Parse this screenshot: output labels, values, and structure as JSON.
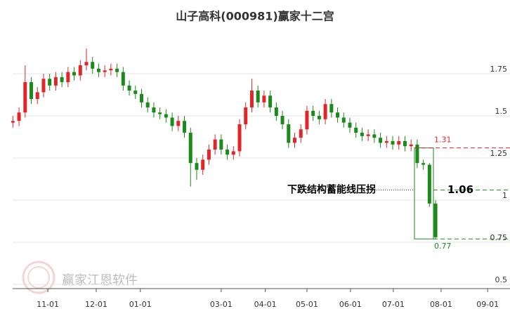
{
  "chart_data": {
    "type": "candlestick",
    "title": "山子高科(000981)赢家十二宫",
    "watermark": "赢家江恩软件",
    "categories": [
      null,
      null,
      null,
      null,
      null,
      null,
      null,
      null,
      null,
      null,
      null,
      null,
      null,
      null,
      null,
      null,
      null,
      null,
      null,
      null,
      null,
      null,
      null,
      null,
      null,
      null,
      null,
      null,
      null,
      null,
      null,
      null,
      null,
      null,
      null,
      null,
      null,
      null,
      null,
      null,
      null,
      null,
      null,
      null,
      null,
      null,
      null,
      null,
      null,
      null,
      null,
      null,
      null,
      null,
      null,
      null,
      null,
      null,
      null,
      null,
      null,
      null,
      null,
      null,
      null,
      null,
      null,
      null,
      null,
      null
    ],
    "open": [
      1.46,
      1.47,
      1.52,
      1.7,
      1.6,
      1.64,
      1.72,
      1.68,
      1.73,
      1.7,
      1.76,
      1.74,
      1.8,
      1.82,
      1.78,
      1.76,
      1.77,
      1.78,
      1.76,
      1.68,
      1.65,
      1.63,
      1.58,
      1.55,
      1.52,
      1.51,
      1.49,
      1.44,
      1.47,
      1.4,
      1.22,
      1.18,
      1.24,
      1.3,
      1.36,
      1.3,
      1.27,
      1.29,
      1.45,
      1.55,
      1.65,
      1.58,
      1.62,
      1.55,
      1.5,
      1.45,
      1.34,
      1.37,
      1.42,
      1.53,
      1.5,
      1.48,
      1.57,
      1.52,
      1.49,
      1.46,
      1.43,
      1.4,
      1.38,
      1.39,
      1.37,
      1.34,
      1.35,
      1.33,
      1.35,
      1.32,
      1.33,
      1.22,
      1.21,
      0.98
    ],
    "high": [
      1.5,
      1.55,
      1.8,
      1.73,
      1.67,
      1.75,
      1.75,
      1.76,
      1.76,
      1.79,
      1.79,
      1.83,
      1.9,
      1.85,
      1.81,
      1.8,
      1.81,
      1.81,
      1.79,
      1.71,
      1.68,
      1.66,
      1.61,
      1.58,
      1.55,
      1.54,
      1.52,
      1.5,
      1.5,
      1.43,
      1.25,
      1.27,
      1.33,
      1.39,
      1.39,
      1.33,
      1.32,
      1.48,
      1.58,
      1.72,
      1.68,
      1.65,
      1.65,
      1.58,
      1.53,
      1.48,
      1.4,
      1.45,
      1.56,
      1.56,
      1.53,
      1.6,
      1.6,
      1.55,
      1.52,
      1.49,
      1.46,
      1.43,
      1.42,
      1.42,
      1.4,
      1.38,
      1.38,
      1.38,
      1.38,
      1.36,
      1.36,
      1.24,
      1.22,
      1.0
    ],
    "low": [
      1.43,
      1.44,
      1.49,
      1.57,
      1.57,
      1.61,
      1.65,
      1.65,
      1.67,
      1.67,
      1.71,
      1.71,
      1.77,
      1.75,
      1.73,
      1.73,
      1.74,
      1.73,
      1.65,
      1.62,
      1.6,
      1.55,
      1.52,
      1.49,
      1.48,
      1.46,
      1.41,
      1.41,
      1.37,
      1.08,
      1.12,
      1.15,
      1.21,
      1.27,
      1.27,
      1.24,
      1.24,
      1.26,
      1.42,
      1.52,
      1.55,
      1.55,
      1.52,
      1.47,
      1.42,
      1.31,
      1.31,
      1.34,
      1.39,
      1.47,
      1.45,
      1.45,
      1.49,
      1.46,
      1.43,
      1.4,
      1.37,
      1.35,
      1.35,
      1.34,
      1.31,
      1.31,
      1.3,
      1.3,
      1.29,
      1.29,
      1.19,
      1.18,
      0.96,
      0.77
    ],
    "close": [
      1.47,
      1.52,
      1.7,
      1.6,
      1.64,
      1.72,
      1.68,
      1.73,
      1.7,
      1.76,
      1.74,
      1.8,
      1.82,
      1.78,
      1.76,
      1.77,
      1.78,
      1.76,
      1.68,
      1.65,
      1.63,
      1.58,
      1.55,
      1.52,
      1.51,
      1.49,
      1.44,
      1.47,
      1.4,
      1.22,
      1.18,
      1.24,
      1.3,
      1.36,
      1.3,
      1.27,
      1.29,
      1.45,
      1.55,
      1.65,
      1.58,
      1.62,
      1.55,
      1.5,
      1.45,
      1.34,
      1.37,
      1.42,
      1.53,
      1.5,
      1.48,
      1.57,
      1.52,
      1.49,
      1.46,
      1.43,
      1.4,
      1.38,
      1.39,
      1.37,
      1.34,
      1.35,
      1.33,
      1.35,
      1.32,
      1.33,
      1.22,
      1.21,
      0.98,
      0.78
    ],
    "up_color": "#e0262a",
    "down_color": "#1b8a1b",
    "xlim": [
      -0.5,
      80
    ],
    "xticks": [
      {
        "value": 5.7,
        "label": "11-01"
      },
      {
        "value": 13.6,
        "label": "12-01"
      },
      {
        "value": 20.8,
        "label": "01-01"
      },
      {
        "value": 34.0,
        "label": "03-01"
      },
      {
        "value": 41.2,
        "label": "04-01"
      },
      {
        "value": 48.0,
        "label": "05-01"
      },
      {
        "value": 55.1,
        "label": "06-01"
      },
      {
        "value": 62.1,
        "label": "07-01"
      },
      {
        "value": 69.9,
        "label": "08-01"
      },
      {
        "value": 77.5,
        "label": "09-01"
      }
    ],
    "ylim": [
      0.475,
      2.0
    ],
    "yticks": [
      0.5,
      0.75,
      1,
      1.25,
      1.5,
      1.75
    ],
    "grid": true,
    "levels": [
      {
        "value": 1.31,
        "color": "#e0262a"
      },
      {
        "value": 0.77,
        "color": "#1b8a1b"
      },
      {
        "value": 1.06,
        "color": "#1b8a1b",
        "label": "下跌结构蓄能线压拐"
      }
    ]
  }
}
